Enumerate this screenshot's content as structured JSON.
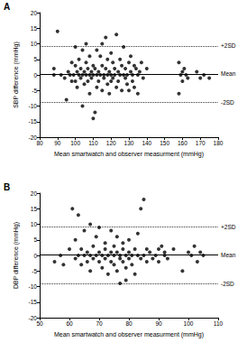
{
  "chart_data": [
    {
      "type": "scatter",
      "title": "A",
      "x_label": "Mean smartwatch and observer measurment (mmHg)",
      "y_label": "SBP difference (mmHg)",
      "xlim": [
        80,
        180
      ],
      "xticks": [
        80,
        90,
        100,
        110,
        120,
        130,
        140,
        150,
        160,
        170,
        180
      ],
      "ylim": [
        -20,
        20
      ],
      "yticks": [
        -20,
        -15,
        -10,
        -5,
        0,
        5,
        10,
        15,
        20
      ],
      "grid": false,
      "color": "#000000",
      "marker": "circle",
      "annotations": [
        {
          "label": "+2SD",
          "y": 9.3,
          "line_style": "dotted"
        },
        {
          "label": "Mean",
          "y": 0.3,
          "line_style": "solid"
        },
        {
          "label": "-2SD",
          "y": -8.8,
          "line_style": "dotted"
        }
      ],
      "x": [
        88,
        88,
        90,
        92,
        94,
        95,
        96,
        97,
        98,
        98,
        99,
        100,
        100,
        100,
        101,
        101,
        102,
        102,
        103,
        103,
        104,
        104,
        104,
        105,
        105,
        106,
        106,
        106,
        107,
        107,
        108,
        108,
        108,
        109,
        109,
        110,
        110,
        110,
        111,
        111,
        112,
        112,
        112,
        113,
        113,
        114,
        114,
        115,
        115,
        115,
        116,
        116,
        117,
        117,
        118,
        118,
        118,
        119,
        119,
        120,
        120,
        120,
        121,
        121,
        122,
        122,
        123,
        123,
        124,
        124,
        125,
        125,
        126,
        126,
        127,
        127,
        128,
        128,
        129,
        129,
        130,
        130,
        131,
        131,
        132,
        132,
        133,
        133,
        134,
        135,
        135,
        136,
        137,
        138,
        140,
        158,
        158,
        159,
        160,
        160,
        161,
        162,
        163,
        168,
        170,
        172,
        175
      ],
      "values": [
        0,
        2,
        14,
        0,
        -1,
        -8,
        1,
        0,
        4,
        -2,
        0,
        3,
        -2,
        9,
        1,
        -4,
        0,
        5,
        2,
        -1,
        0,
        8,
        -10,
        1,
        -3,
        10,
        0,
        4,
        -2,
        2,
        0,
        -6,
        6,
        1,
        -1,
        3,
        -14,
        0,
        -12,
        2,
        0,
        8,
        -4,
        1,
        -2,
        6,
        0,
        -5,
        3,
        10,
        0,
        -1,
        2,
        12,
        0,
        -3,
        5,
        1,
        -6,
        0,
        7,
        -2,
        4,
        -1,
        0,
        2,
        -4,
        13,
        1,
        -2,
        0,
        5,
        -5,
        3,
        0,
        9,
        -1,
        2,
        0,
        -3,
        4,
        -5,
        1,
        6,
        0,
        -2,
        3,
        -4,
        2,
        0,
        -6,
        1,
        4,
        -1,
        2,
        4,
        -6,
        0,
        -2,
        1,
        2,
        0,
        -1,
        1,
        -1,
        0,
        -1
      ]
    },
    {
      "type": "scatter",
      "title": "B",
      "x_label": "Mean smartwatch and observer measurment (mmHg)",
      "y_label": "DBP difference (mmHg)",
      "xlim": [
        50,
        110
      ],
      "xticks": [
        50,
        60,
        70,
        80,
        90,
        100,
        110
      ],
      "ylim": [
        -20,
        20
      ],
      "yticks": [
        -20,
        -15,
        -10,
        -5,
        0,
        5,
        10,
        15,
        20
      ],
      "grid": false,
      "color": "#000000",
      "marker": "circle",
      "annotations": [
        {
          "label": "+2SD",
          "y": 9.2,
          "line_style": "dotted"
        },
        {
          "label": "Mean",
          "y": 0.1,
          "line_style": "solid"
        },
        {
          "label": "-2SD",
          "y": -9.2,
          "line_style": "dotted"
        }
      ],
      "x": [
        55,
        57,
        58,
        60,
        61,
        62,
        62,
        63,
        63,
        64,
        64,
        65,
        65,
        66,
        66,
        67,
        67,
        67,
        68,
        68,
        69,
        69,
        70,
        70,
        70,
        71,
        71,
        72,
        72,
        72,
        73,
        73,
        74,
        74,
        74,
        75,
        75,
        75,
        76,
        76,
        76,
        77,
        77,
        77,
        78,
        78,
        78,
        79,
        79,
        79,
        80,
        80,
        80,
        81,
        81,
        82,
        82,
        83,
        83,
        84,
        84,
        85,
        85,
        86,
        86,
        87,
        88,
        89,
        90,
        90,
        91,
        92,
        92,
        93,
        95,
        98,
        100,
        101,
        102,
        103,
        104,
        105
      ],
      "values": [
        -2,
        0,
        -3,
        2,
        15,
        -1,
        5,
        0,
        13,
        2,
        -3,
        0,
        8,
        1,
        -2,
        10,
        0,
        -5,
        3,
        -1,
        0,
        6,
        -2,
        1,
        9,
        0,
        -4,
        2,
        -1,
        4,
        0,
        -6,
        1,
        -2,
        8,
        0,
        3,
        -3,
        1,
        -5,
        6,
        0,
        -1,
        -9,
        2,
        -2,
        4,
        0,
        -4,
        -8,
        1,
        -1,
        5,
        0,
        -3,
        2,
        -6,
        0,
        7,
        -1,
        15,
        18,
        0,
        2,
        -2,
        1,
        -1,
        0,
        2,
        -2,
        3,
        0,
        1,
        -1,
        2,
        -5,
        1,
        0,
        3,
        -2,
        1,
        0
      ]
    }
  ]
}
